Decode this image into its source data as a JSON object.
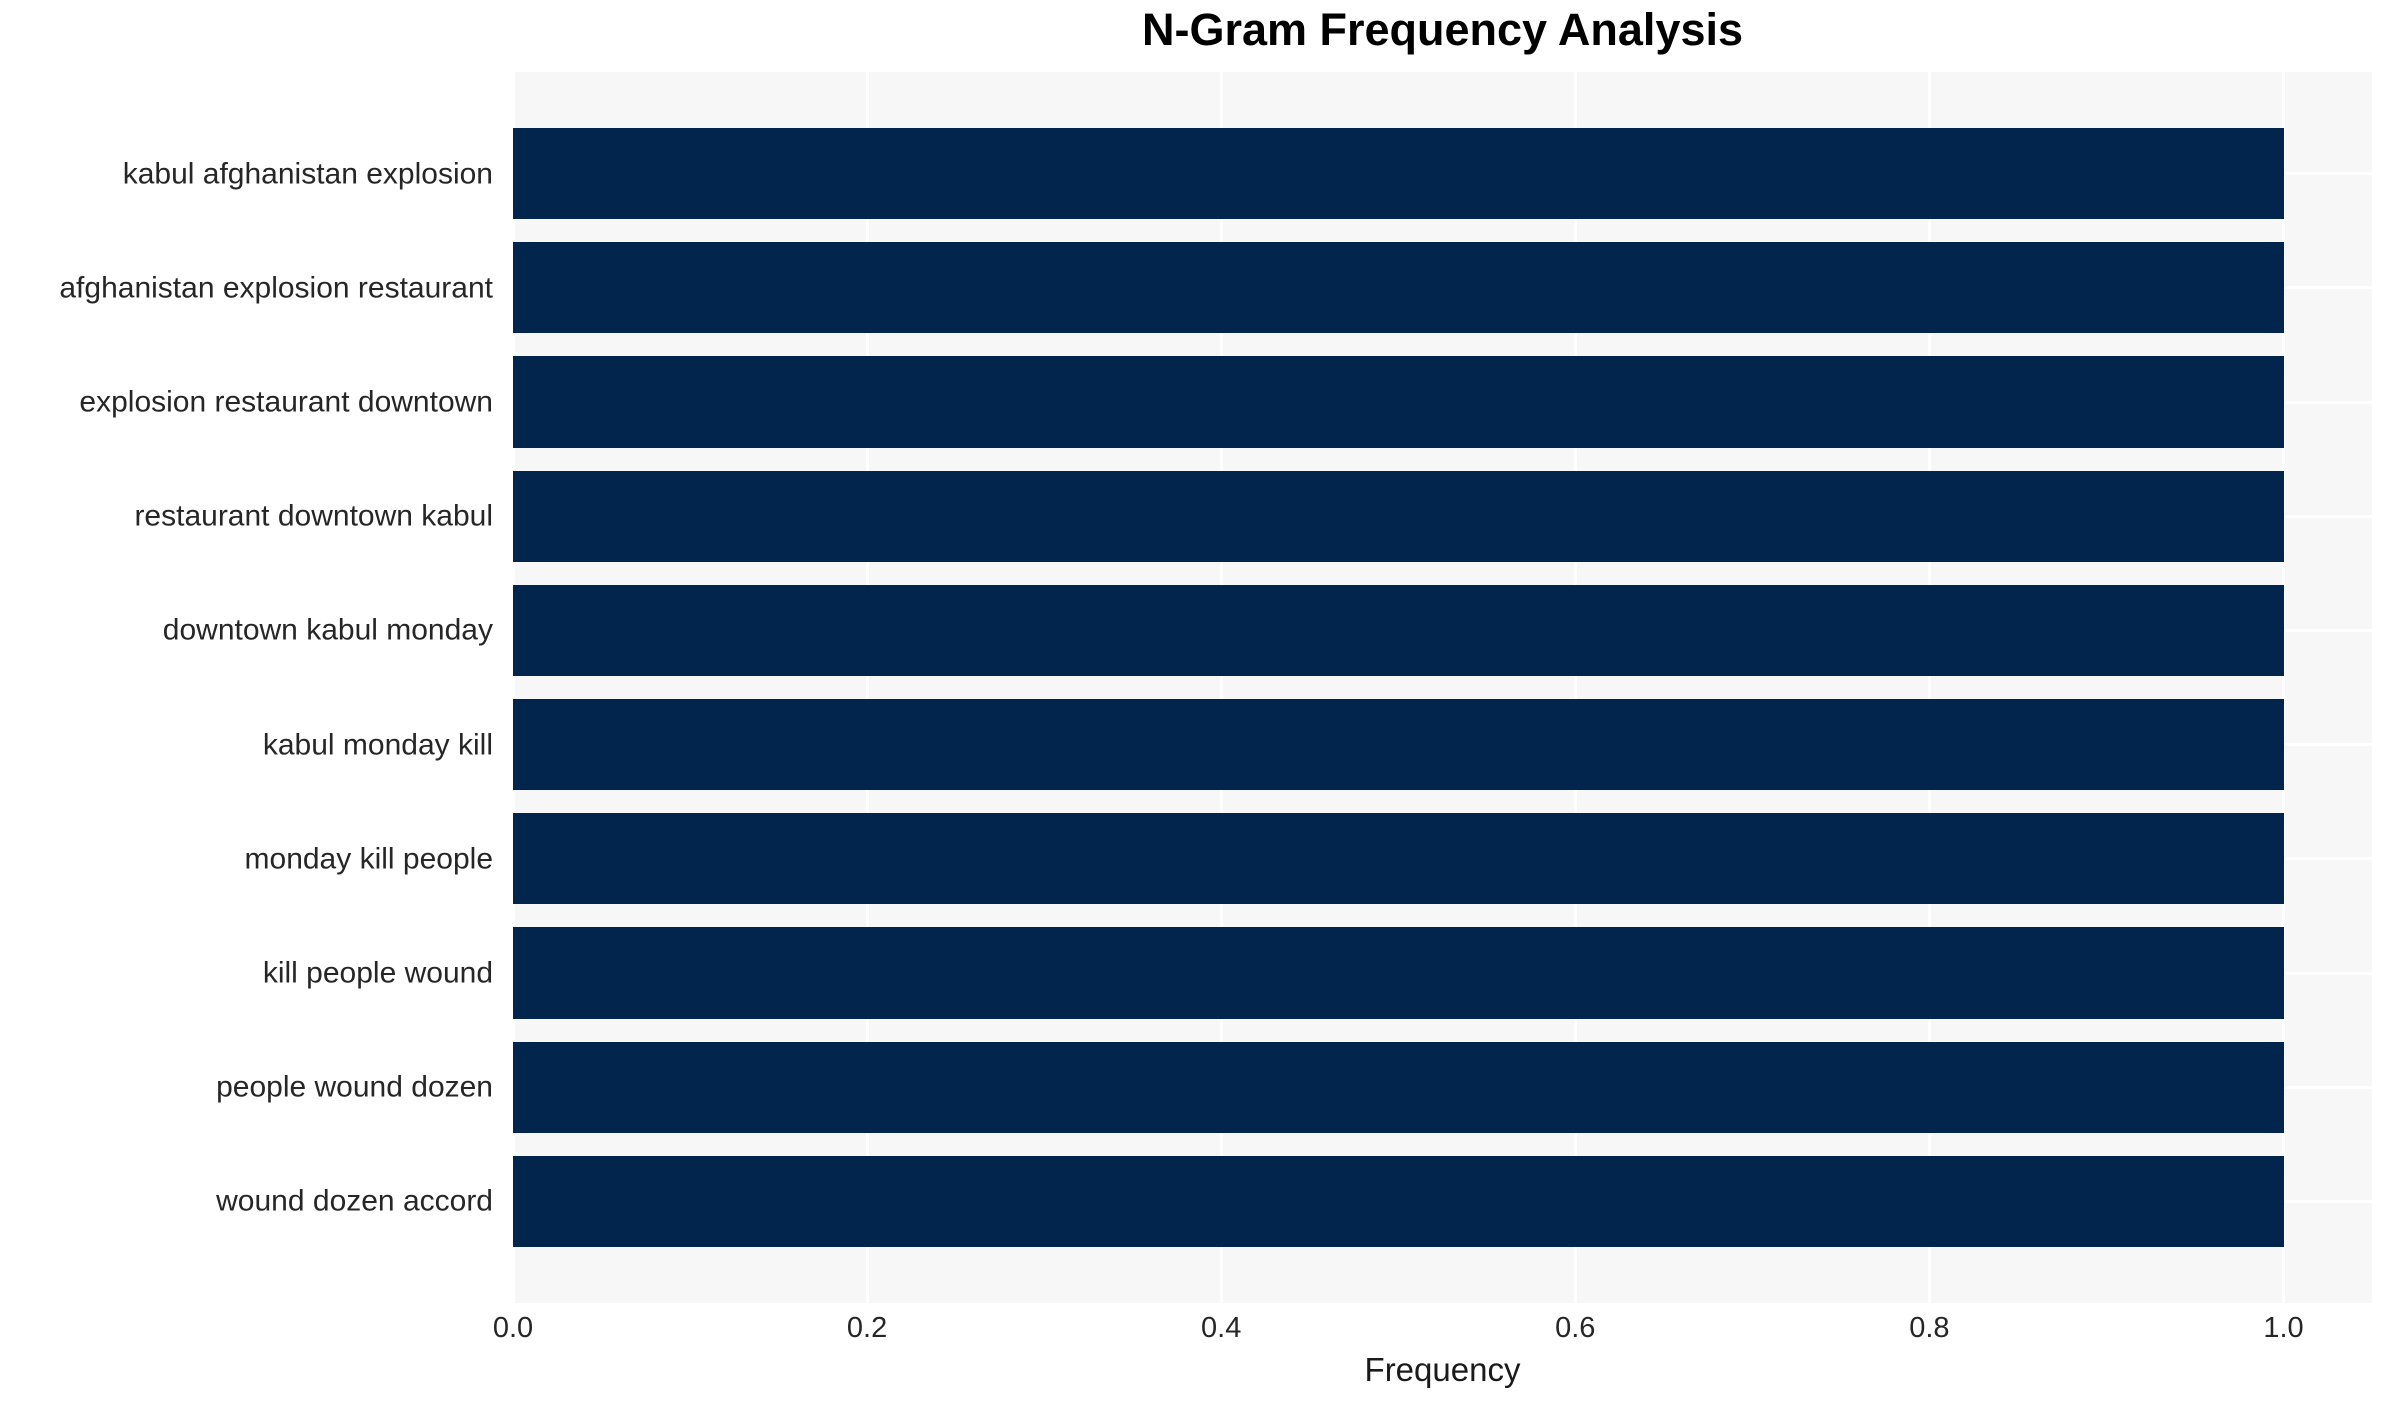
{
  "chart_data": {
    "type": "bar",
    "orientation": "horizontal",
    "title": "N-Gram Frequency Analysis",
    "xlabel": "Frequency",
    "ylabel": "",
    "categories": [
      "kabul afghanistan explosion",
      "afghanistan explosion restaurant",
      "explosion restaurant downtown",
      "restaurant downtown kabul",
      "downtown kabul monday",
      "kabul monday kill",
      "monday kill people",
      "kill people wound",
      "people wound dozen",
      "wound dozen accord"
    ],
    "values": [
      1.0,
      1.0,
      1.0,
      1.0,
      1.0,
      1.0,
      1.0,
      1.0,
      1.0,
      1.0
    ],
    "xlim": [
      0,
      1.05
    ],
    "x_ticks": [
      0.0,
      0.2,
      0.4,
      0.6,
      0.8,
      1.0
    ],
    "x_tick_labels": [
      "0.0",
      "0.2",
      "0.4",
      "0.6",
      "0.8",
      "1.0"
    ],
    "grid": true,
    "grid_color": "#ffffff",
    "legend": false,
    "colors": {
      "bar": "#02254e",
      "plot_background": "#f7f7f8",
      "figure_background": "#ffffff",
      "tick_label": "#262626",
      "title": "#000000"
    }
  }
}
